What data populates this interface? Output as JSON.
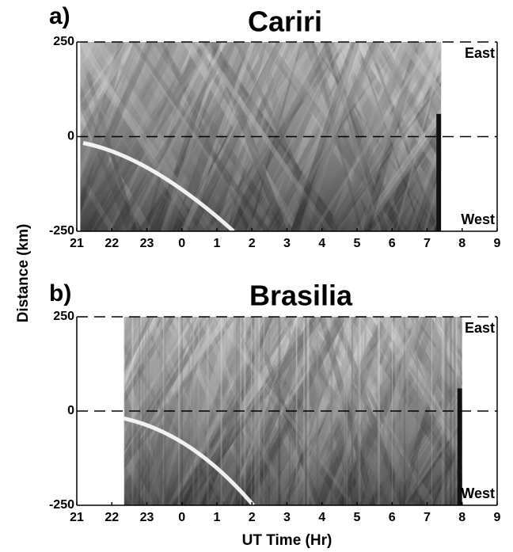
{
  "ylabel": "Distance (km)",
  "chart_data": [
    {
      "type": "image",
      "panel": "a)",
      "title": "Cariri",
      "x": [
        21.1,
        31.4
      ],
      "xlim": [
        21,
        33
      ],
      "xticks": [
        21,
        22,
        23,
        {
          "value": 24,
          "label": "0"
        },
        {
          "value": 25,
          "label": "1"
        },
        {
          "value": 26,
          "label": "2"
        },
        {
          "value": 27,
          "label": "3"
        },
        {
          "value": 28,
          "label": "4"
        },
        {
          "value": 29,
          "label": "5"
        },
        {
          "value": 30,
          "label": "6"
        },
        {
          "value": 31,
          "label": "7"
        },
        {
          "value": 32,
          "label": "8"
        },
        {
          "value": 33,
          "label": "9"
        }
      ],
      "ylim": [
        -250,
        250
      ],
      "yticks": [
        -250,
        0,
        250
      ],
      "annotations": [
        "East",
        "West"
      ]
    },
    {
      "type": "image",
      "panel": "b)",
      "title": "Brasilia",
      "x": [
        22.35,
        32.0
      ],
      "xlim": [
        21,
        33
      ],
      "xticks": [
        21,
        22,
        23,
        {
          "value": 24,
          "label": "0"
        },
        {
          "value": 25,
          "label": "1"
        },
        {
          "value": 26,
          "label": "2"
        },
        {
          "value": 27,
          "label": "3"
        },
        {
          "value": 28,
          "label": "4"
        },
        {
          "value": 29,
          "label": "5"
        },
        {
          "value": 30,
          "label": "6"
        },
        {
          "value": 31,
          "label": "7"
        },
        {
          "value": 32,
          "label": "8"
        },
        {
          "value": 33,
          "label": "9"
        }
      ],
      "ylim": [
        -250,
        250
      ],
      "yticks": [
        -250,
        0,
        250
      ],
      "xlabel": "UT Time (Hr)",
      "annotations": [
        "East",
        "West"
      ]
    }
  ]
}
